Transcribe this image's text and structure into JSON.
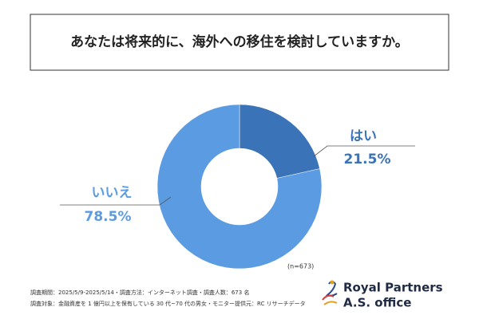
{
  "chart_data": {
    "type": "donut",
    "title": "あなたは将来的に、海外への移住を検討していますか。",
    "categories": [
      "はい",
      "いいえ"
    ],
    "values": [
      21.5,
      78.5
    ],
    "value_labels": [
      "21.5%",
      "78.5%"
    ],
    "colors": [
      "#3b73b9",
      "#5b9be1"
    ],
    "annotation": "(n=673)",
    "footnotes": [
      "調査期間：2025/5/9-2025/5/14・調査方法：インターネット調査・調査人数：673 名",
      "調査対象：金融資産を 1 億円以上を保有している 30 代~70 代の男女・モニター提供元：RC リサーチデータ"
    ]
  },
  "logo": {
    "line1": "Royal Partners",
    "line2": "A.S. office"
  }
}
